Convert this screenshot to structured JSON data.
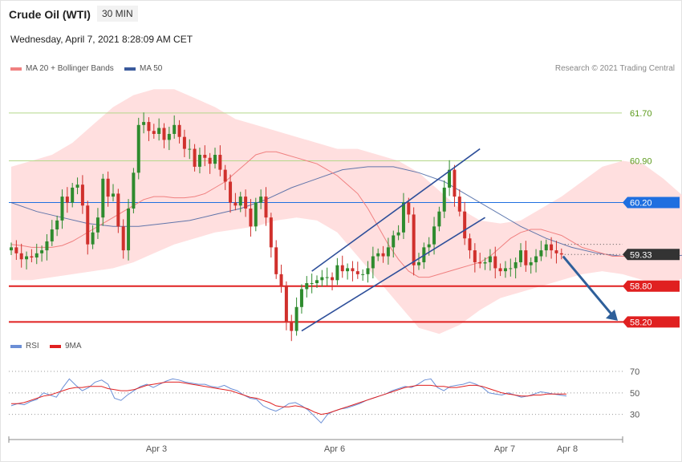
{
  "header": {
    "title": "Crude Oil (WTI)",
    "timeframe": "30 MIN",
    "datetime": "Wednesday, April 7, 2021 8:28:09 AM CET",
    "credit": "Research © 2021 Trading Central"
  },
  "legend": {
    "ma20": "MA 20 + Bollinger Bands",
    "ma50": "MA 50",
    "rsi": "RSI",
    "ma9": "9MA"
  },
  "colors": {
    "candle_up": "#2e8b2e",
    "candle_down": "#d0302c",
    "ma20": "#f08080",
    "bollinger": "#ffd9d9",
    "ma50": "#3a5a9c",
    "support": "#e02020",
    "pivot": "#1f6fe0",
    "resistance": "#b5d88a",
    "resistance_text": "#5a9a1a",
    "channel": "#2e4f9a",
    "arrow": "#2e5f9a",
    "rsi": "#6b8fd6",
    "rsi_ma": "#e02020",
    "last_price": "#333333"
  },
  "chart_data": [
    {
      "type": "candlestick",
      "title": "Crude Oil (WTI)",
      "timeframe": "30 MIN",
      "x_labels": [
        "Apr 3",
        "Apr 6",
        "Apr 7",
        "Apr 8"
      ],
      "ylim": [
        57.95,
        62.25
      ],
      "closes": [
        59.45,
        59.35,
        59.25,
        59.3,
        59.28,
        59.35,
        59.4,
        59.55,
        59.75,
        59.9,
        60.3,
        60.2,
        60.45,
        60.5,
        60.15,
        59.5,
        59.7,
        59.95,
        60.6,
        60.3,
        60.35,
        59.8,
        59.4,
        60.1,
        60.7,
        61.5,
        61.55,
        61.4,
        61.35,
        61.45,
        61.25,
        61.35,
        61.5,
        61.3,
        61.1,
        61.1,
        60.8,
        61.0,
        60.95,
        60.85,
        61.0,
        60.75,
        60.55,
        60.2,
        60.15,
        60.3,
        60.1,
        59.8,
        60.2,
        60.3,
        59.95,
        59.45,
        59.0,
        58.8,
        58.2,
        58.05,
        58.45,
        58.75,
        58.85,
        58.85,
        58.9,
        58.95,
        58.95,
        58.9,
        59.15,
        59.05,
        59.1,
        59.05,
        59.0,
        59.0,
        59.1,
        59.3,
        59.35,
        59.3,
        59.45,
        59.65,
        59.7,
        60.2,
        60.0,
        59.15,
        59.2,
        59.45,
        59.5,
        59.8,
        60.05,
        60.45,
        60.75,
        60.3,
        60.05,
        59.6,
        59.4,
        59.2,
        59.18,
        59.2,
        59.3,
        59.1,
        59.05,
        59.1,
        59.1,
        59.2,
        59.4,
        59.15,
        59.2,
        59.3,
        59.4,
        59.5,
        59.4,
        59.35,
        59.33
      ],
      "opens": [
        59.4,
        59.45,
        59.35,
        59.25,
        59.3,
        59.28,
        59.35,
        59.4,
        59.55,
        59.75,
        59.9,
        60.3,
        60.2,
        60.45,
        60.5,
        60.15,
        59.5,
        59.7,
        59.95,
        60.6,
        60.3,
        60.35,
        59.8,
        59.4,
        60.1,
        60.7,
        61.5,
        61.55,
        61.4,
        61.35,
        61.45,
        61.25,
        61.35,
        61.5,
        61.3,
        61.1,
        61.1,
        60.8,
        61.0,
        60.95,
        60.85,
        61.0,
        60.75,
        60.55,
        60.2,
        60.15,
        60.3,
        60.1,
        59.8,
        60.2,
        60.3,
        59.95,
        59.45,
        59.0,
        58.8,
        58.2,
        58.05,
        58.45,
        58.75,
        58.85,
        58.85,
        58.9,
        58.95,
        58.95,
        58.9,
        59.15,
        59.05,
        59.1,
        59.05,
        59.0,
        59.0,
        59.1,
        59.3,
        59.35,
        59.3,
        59.45,
        59.65,
        59.7,
        60.2,
        60.0,
        59.15,
        59.2,
        59.45,
        59.5,
        59.8,
        60.05,
        60.45,
        60.75,
        60.3,
        60.05,
        59.6,
        59.4,
        59.2,
        59.18,
        59.2,
        59.3,
        59.1,
        59.05,
        59.1,
        59.1,
        59.2,
        59.4,
        59.15,
        59.2,
        59.3,
        59.4,
        59.5,
        59.4,
        59.35
      ],
      "ma20": [
        59.5,
        59.48,
        59.45,
        59.45,
        59.45,
        59.48,
        59.55,
        59.65,
        59.75,
        59.85,
        59.95,
        60.05,
        60.15,
        60.25,
        60.3,
        60.3,
        60.28,
        60.28,
        60.3,
        60.35,
        60.45,
        60.55,
        60.7,
        60.85,
        61.0,
        61.05,
        61.05,
        61.0,
        60.95,
        60.9,
        60.85,
        60.75,
        60.65,
        60.5,
        60.35,
        60.1,
        59.8,
        59.5,
        59.25,
        59.05,
        58.95,
        58.95,
        59.0,
        59.05,
        59.1,
        59.15,
        59.2,
        59.3,
        59.45,
        59.6,
        59.7,
        59.75,
        59.75,
        59.7,
        59.65,
        59.55,
        59.45,
        59.4,
        59.35,
        59.3,
        59.3,
        59.3,
        59.3,
        59.35,
        59.4,
        59.35
      ],
      "ma20_x": [
        0,
        2,
        4,
        6,
        8,
        10,
        12,
        14,
        16,
        18,
        20,
        22,
        24,
        26,
        28,
        30,
        32,
        34,
        36,
        38,
        40,
        42,
        44,
        46,
        48,
        50,
        52,
        54,
        56,
        58,
        60,
        62,
        64,
        66,
        68,
        70,
        72,
        74,
        76,
        78,
        80,
        82,
        84,
        86,
        88,
        90,
        92,
        94,
        96,
        98,
        100,
        102,
        104,
        106,
        108,
        110,
        112,
        114,
        116,
        118,
        120,
        122,
        124,
        126,
        128,
        130
      ],
      "ma50": [
        60.2,
        60.05,
        59.95,
        59.85,
        59.8,
        59.8,
        59.85,
        59.9,
        60.0,
        60.1,
        60.25,
        60.45,
        60.6,
        60.75,
        60.8,
        60.8,
        60.7,
        60.55,
        60.3,
        60.05,
        59.8,
        59.6,
        59.45,
        59.35,
        59.3,
        59.3,
        59.3,
        59.35,
        59.38
      ],
      "ma50_x": [
        0,
        5,
        10,
        15,
        20,
        25,
        30,
        35,
        40,
        45,
        50,
        55,
        60,
        65,
        70,
        75,
        80,
        85,
        90,
        95,
        100,
        105,
        110,
        115,
        120,
        125,
        130,
        135,
        140
      ],
      "bollinger_upper": [
        60.8,
        60.9,
        61.0,
        61.2,
        61.5,
        61.8,
        62.0,
        62.1,
        62.1,
        61.95,
        61.8,
        61.6,
        61.5,
        61.4,
        61.3,
        61.2,
        61.1,
        61.1,
        61.0,
        60.9,
        60.7,
        60.4,
        60.1,
        59.9,
        59.85,
        59.9,
        60.1,
        60.3,
        60.55,
        60.8,
        60.9,
        60.85,
        60.6,
        60.3,
        60.2,
        60.1
      ],
      "bollinger_lower": [
        58.9,
        58.9,
        58.95,
        59.0,
        59.05,
        59.1,
        59.2,
        59.35,
        59.5,
        59.6,
        59.7,
        59.75,
        59.8,
        59.9,
        59.95,
        59.9,
        59.7,
        59.3,
        58.9,
        58.5,
        58.1,
        58.0,
        58.15,
        58.4,
        58.6,
        58.7,
        58.8,
        58.9,
        59.0,
        59.05,
        59.0,
        58.9,
        58.75,
        58.95,
        59.1,
        59.2
      ],
      "bollinger_x": [
        0,
        4,
        8,
        12,
        16,
        20,
        24,
        28,
        32,
        36,
        40,
        44,
        48,
        52,
        56,
        60,
        64,
        68,
        72,
        76,
        80,
        84,
        88,
        92,
        96,
        100,
        104,
        108,
        112,
        116,
        120,
        124,
        128,
        132,
        136,
        140
      ],
      "levels": [
        {
          "label": "61.70",
          "value": 61.7,
          "kind": "resistance"
        },
        {
          "label": "60.90",
          "value": 60.9,
          "kind": "resistance"
        },
        {
          "label": "60.20",
          "value": 60.2,
          "kind": "pivot"
        },
        {
          "label": "58.80",
          "value": 58.8,
          "kind": "support"
        },
        {
          "label": "58.20",
          "value": 58.2,
          "kind": "support"
        }
      ],
      "last_price": {
        "label": "59.33",
        "value": 59.33
      },
      "annotations": [
        "ascending channel",
        "bearish target arrow to 58.20"
      ]
    },
    {
      "type": "line",
      "title": "RSI",
      "series": [
        {
          "name": "RSI",
          "values": [
            38,
            40,
            39,
            42,
            44,
            50,
            48,
            46,
            55,
            63,
            57,
            52,
            55,
            60,
            62,
            58,
            45,
            43,
            48,
            52,
            56,
            58,
            55,
            58,
            61,
            63,
            62,
            60,
            59,
            58,
            58,
            56,
            55,
            57,
            54,
            52,
            48,
            45,
            44,
            38,
            35,
            33,
            36,
            40,
            41,
            38,
            34,
            28,
            22,
            30,
            33,
            35,
            36,
            38,
            40,
            43,
            45,
            47,
            49,
            52,
            54,
            56,
            55,
            58,
            62,
            63,
            55,
            52,
            56,
            57,
            58,
            60,
            58,
            55,
            50,
            49,
            48,
            50,
            48,
            46,
            47,
            49,
            51,
            50,
            49,
            48,
            47
          ]
        },
        {
          "name": "9MA",
          "values": [
            40,
            40,
            41,
            43,
            45,
            47,
            48,
            50,
            52,
            54,
            55,
            55,
            56,
            56,
            56,
            54,
            53,
            52,
            52,
            53,
            55,
            57,
            58,
            59,
            60,
            60,
            60,
            59,
            58,
            57,
            56,
            55,
            54,
            53,
            52,
            50,
            48,
            46,
            45,
            43,
            41,
            38,
            37,
            37,
            38,
            37,
            35,
            32,
            30,
            31,
            33,
            35,
            37,
            39,
            41,
            43,
            45,
            47,
            49,
            51,
            53,
            55,
            56,
            57,
            57,
            57,
            56,
            56,
            55,
            55,
            56,
            57,
            57,
            56,
            54,
            52,
            50,
            49,
            48,
            47,
            47,
            48,
            48,
            49,
            49,
            49,
            49
          ]
        }
      ],
      "ylim": [
        20,
        76
      ],
      "levels": [
        {
          "label": "70",
          "value": 70
        },
        {
          "label": "50",
          "value": 50
        },
        {
          "label": "30",
          "value": 30
        }
      ]
    }
  ]
}
